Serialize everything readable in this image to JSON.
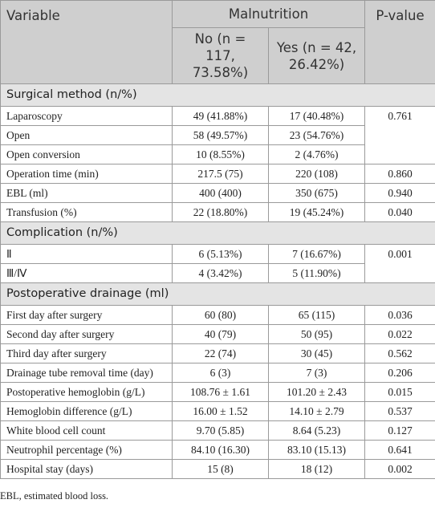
{
  "header": {
    "variable": "Variable",
    "group": "Malnutrition",
    "col_no": "No (n = 117, 73.58%)",
    "col_yes": "Yes (n = 42, 26.42%)",
    "p_value": "P-value"
  },
  "sections": [
    {
      "title": "Surgical method (n/%)",
      "groups": [
        {
          "p": "0.761",
          "rows": [
            {
              "label": "Laparoscopy",
              "no": "49 (41.88%)",
              "yes": "17 (40.48%)"
            },
            {
              "label": "Open",
              "no": "58 (49.57%)",
              "yes": "23 (54.76%)"
            },
            {
              "label": "Open conversion",
              "no": "10 (8.55%)",
              "yes": "2 (4.76%)"
            }
          ]
        },
        {
          "p": "0.860",
          "rows": [
            {
              "label": "Operation time (min)",
              "no": "217.5 (75)",
              "yes": "220 (108)"
            }
          ]
        },
        {
          "p": "0.940",
          "rows": [
            {
              "label": "EBL (ml)",
              "no": "400 (400)",
              "yes": "350 (675)"
            }
          ]
        },
        {
          "p": "0.040",
          "rows": [
            {
              "label": "Transfusion (%)",
              "no": "22 (18.80%)",
              "yes": "19 (45.24%)"
            }
          ]
        }
      ]
    },
    {
      "title": "Complication (n/%)",
      "groups": [
        {
          "p": "0.001",
          "rows": [
            {
              "label": "Ⅱ",
              "no": "6 (5.13%)",
              "yes": "7 (16.67%)"
            },
            {
              "label": "Ⅲ/Ⅳ",
              "no": "4 (3.42%)",
              "yes": "5 (11.90%)"
            }
          ]
        }
      ]
    },
    {
      "title": "Postoperative drainage (ml)",
      "groups": [
        {
          "p": "0.036",
          "rows": [
            {
              "label": "First day after surgery",
              "no": "60 (80)",
              "yes": "65 (115)"
            }
          ]
        },
        {
          "p": "0.022",
          "rows": [
            {
              "label": "Second day after surgery",
              "no": "40 (79)",
              "yes": "50 (95)"
            }
          ]
        },
        {
          "p": "0.562",
          "rows": [
            {
              "label": "Third day after surgery",
              "no": "22 (74)",
              "yes": "30 (45)"
            }
          ]
        },
        {
          "p": "0.206",
          "rows": [
            {
              "label": "Drainage tube removal time (day)",
              "no": "6 (3)",
              "yes": "7 (3)"
            }
          ]
        },
        {
          "p": "0.015",
          "rows": [
            {
              "label": "Postoperative hemoglobin (g/L)",
              "no": "108.76 ± 1.61",
              "yes": "101.20 ± 2.43"
            }
          ]
        },
        {
          "p": "0.537",
          "rows": [
            {
              "label": "Hemoglobin difference (g/L)",
              "no": "16.00 ± 1.52",
              "yes": "14.10 ± 2.79"
            }
          ]
        },
        {
          "p": "0.127",
          "rows": [
            {
              "label": "White blood cell count",
              "no": "9.70 (5.85)",
              "yes": "8.64 (5.23)"
            }
          ]
        },
        {
          "p": "0.641",
          "rows": [
            {
              "label": "Neutrophil percentage (%)",
              "no": "84.10 (16.30)",
              "yes": "83.10 (15.13)"
            }
          ]
        },
        {
          "p": "0.002",
          "rows": [
            {
              "label": "Hospital stay (days)",
              "no": "15 (8)",
              "yes": "18 (12)"
            }
          ]
        }
      ]
    }
  ],
  "footnote": "EBL, estimated blood loss."
}
